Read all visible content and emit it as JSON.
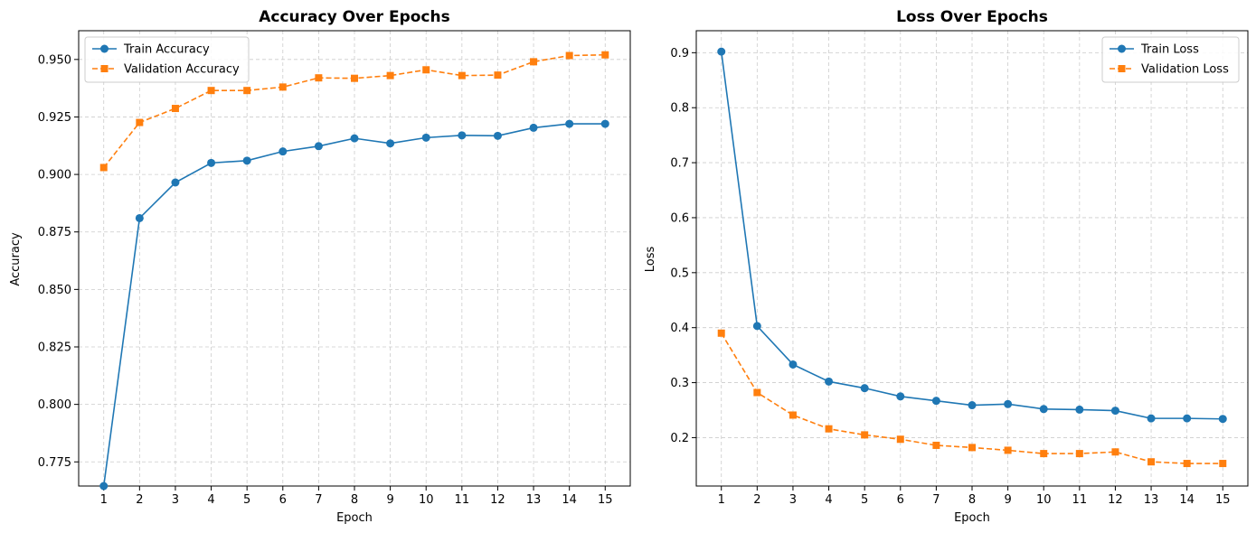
{
  "chart_data": [
    {
      "type": "line",
      "title": "Accuracy Over Epochs",
      "xlabel": "Epoch",
      "ylabel": "Accuracy",
      "x": [
        1,
        2,
        3,
        4,
        5,
        6,
        7,
        8,
        9,
        10,
        11,
        12,
        13,
        14,
        15
      ],
      "ylim": [
        0.7645,
        0.9625
      ],
      "yticks": [
        "0.775",
        "0.800",
        "0.825",
        "0.850",
        "0.875",
        "0.900",
        "0.925",
        "0.950"
      ],
      "grid": true,
      "legend_position": "upper left",
      "series": [
        {
          "name": "Train Accuracy",
          "color": "#1f77b4",
          "marker": "circle",
          "line_style": "solid",
          "values": [
            0.7645,
            0.881,
            0.8965,
            0.905,
            0.906,
            0.91,
            0.9123,
            0.9157,
            0.9135,
            0.916,
            0.917,
            0.9168,
            0.9203,
            0.922,
            0.922
          ]
        },
        {
          "name": "Validation Accuracy",
          "color": "#ff7f0e",
          "marker": "square",
          "line_style": "dashed",
          "values": [
            0.903,
            0.9226,
            0.9287,
            0.9365,
            0.9365,
            0.938,
            0.942,
            0.9418,
            0.943,
            0.9455,
            0.943,
            0.9432,
            0.949,
            0.9517,
            0.952
          ]
        }
      ]
    },
    {
      "type": "line",
      "title": "Loss Over Epochs",
      "xlabel": "Epoch",
      "ylabel": "Loss",
      "x": [
        1,
        2,
        3,
        4,
        5,
        6,
        7,
        8,
        9,
        10,
        11,
        12,
        13,
        14,
        15
      ],
      "ylim": [
        0.112,
        0.94
      ],
      "yticks": [
        "0.2",
        "0.3",
        "0.4",
        "0.5",
        "0.6",
        "0.7",
        "0.8",
        "0.9"
      ],
      "grid": true,
      "legend_position": "upper right",
      "series": [
        {
          "name": "Train Loss",
          "color": "#1f77b4",
          "marker": "circle",
          "line_style": "solid",
          "values": [
            0.902,
            0.403,
            0.333,
            0.302,
            0.29,
            0.275,
            0.267,
            0.259,
            0.261,
            0.252,
            0.251,
            0.249,
            0.235,
            0.235,
            0.234
          ]
        },
        {
          "name": "Validation Loss",
          "color": "#ff7f0e",
          "marker": "square",
          "line_style": "dashed",
          "values": [
            0.39,
            0.282,
            0.241,
            0.216,
            0.205,
            0.197,
            0.186,
            0.182,
            0.177,
            0.171,
            0.171,
            0.174,
            0.156,
            0.153,
            0.153
          ]
        }
      ]
    }
  ]
}
